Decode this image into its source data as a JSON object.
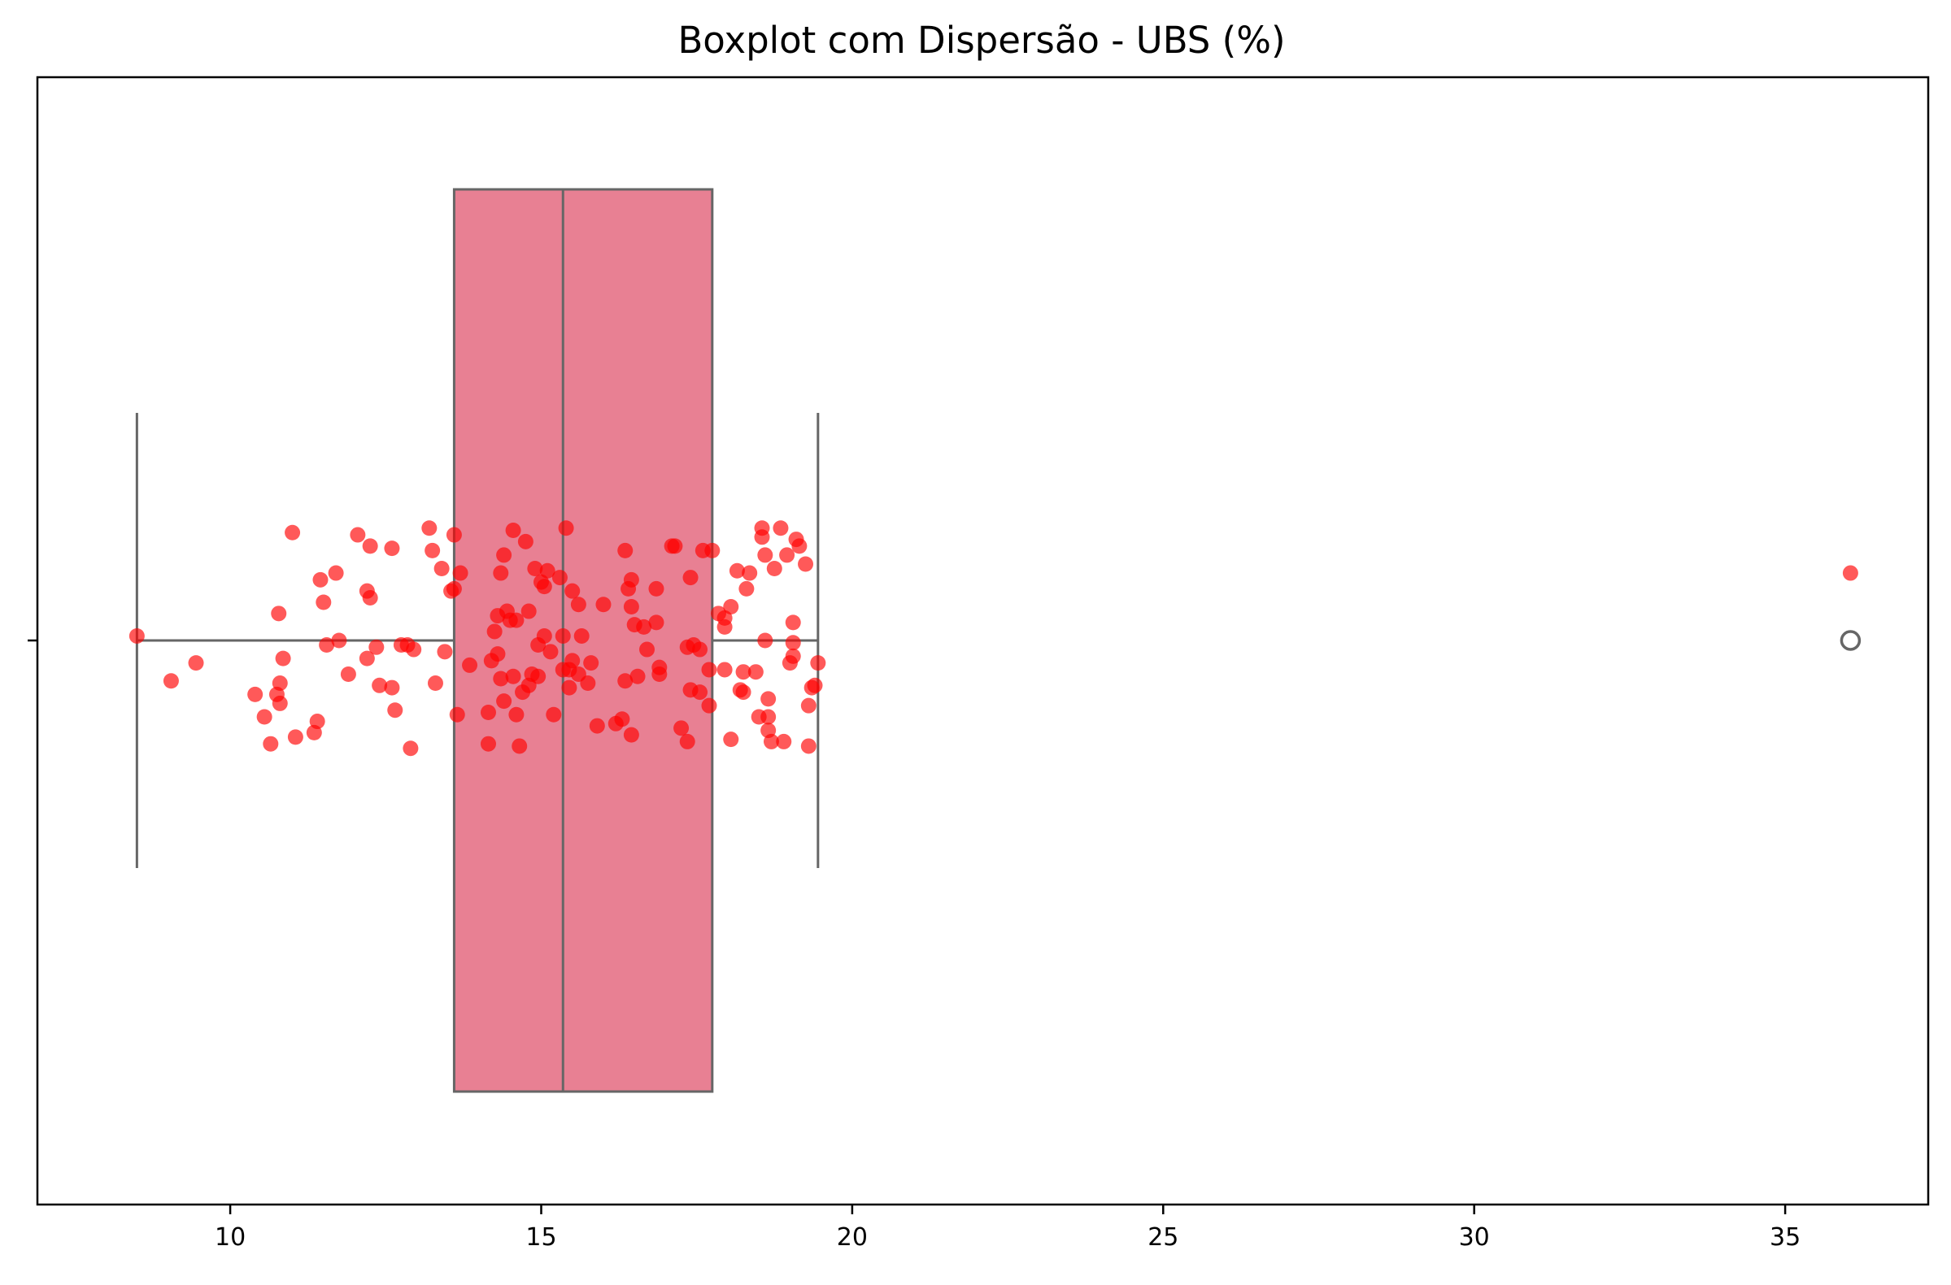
{
  "chart_data": {
    "type": "boxplot",
    "title": "Boxplot com Dispersão - UBS (%)",
    "xlabel": "",
    "ylabel": "",
    "xlim": [
      6.9,
      37.3
    ],
    "xticks": [
      10,
      15,
      20,
      25,
      30,
      35
    ],
    "xtick_labels": [
      "10",
      "15",
      "20",
      "25",
      "30",
      "35"
    ],
    "grid": false,
    "colors": {
      "box_fill": "#e88093",
      "box_edge": "#666666",
      "points": "#ff0000",
      "outlier_edge": "#666666"
    },
    "box": {
      "min_whisker": 8.5,
      "q1": 13.6,
      "median": 15.35,
      "q3": 17.75,
      "max_whisker": 19.45,
      "outliers": [
        36.05
      ]
    },
    "points": [
      {
        "x": 8.5,
        "y": 0.01
      },
      {
        "x": 9.05,
        "y": -0.09
      },
      {
        "x": 9.45,
        "y": -0.05
      },
      {
        "x": 10.4,
        "y": -0.12
      },
      {
        "x": 10.55,
        "y": -0.17
      },
      {
        "x": 10.65,
        "y": -0.23
      },
      {
        "x": 10.75,
        "y": -0.12
      },
      {
        "x": 10.8,
        "y": -0.095
      },
      {
        "x": 10.78,
        "y": 0.06
      },
      {
        "x": 10.8,
        "y": -0.14
      },
      {
        "x": 10.85,
        "y": -0.04
      },
      {
        "x": 11.0,
        "y": 0.24
      },
      {
        "x": 11.05,
        "y": -0.215
      },
      {
        "x": 11.35,
        "y": -0.205
      },
      {
        "x": 11.4,
        "y": -0.18
      },
      {
        "x": 11.45,
        "y": 0.135
      },
      {
        "x": 11.5,
        "y": 0.085
      },
      {
        "x": 11.55,
        "y": -0.01
      },
      {
        "x": 11.7,
        "y": 0.15
      },
      {
        "x": 11.75,
        "y": 0.0
      },
      {
        "x": 11.9,
        "y": -0.075
      },
      {
        "x": 12.05,
        "y": 0.235
      },
      {
        "x": 12.2,
        "y": -0.04
      },
      {
        "x": 12.25,
        "y": 0.21
      },
      {
        "x": 12.2,
        "y": 0.11
      },
      {
        "x": 12.25,
        "y": 0.095
      },
      {
        "x": 12.35,
        "y": -0.015
      },
      {
        "x": 12.4,
        "y": -0.1
      },
      {
        "x": 12.6,
        "y": 0.205
      },
      {
        "x": 12.6,
        "y": -0.105
      },
      {
        "x": 12.65,
        "y": -0.155
      },
      {
        "x": 12.75,
        "y": -0.01
      },
      {
        "x": 12.85,
        "y": -0.01
      },
      {
        "x": 12.9,
        "y": -0.24
      },
      {
        "x": 12.95,
        "y": -0.02
      },
      {
        "x": 13.2,
        "y": 0.25
      },
      {
        "x": 13.25,
        "y": 0.2
      },
      {
        "x": 13.3,
        "y": -0.095
      },
      {
        "x": 13.45,
        "y": -0.025
      },
      {
        "x": 13.4,
        "y": 0.16
      },
      {
        "x": 13.55,
        "y": 0.11
      },
      {
        "x": 13.6,
        "y": 0.115
      },
      {
        "x": 13.6,
        "y": 0.235
      },
      {
        "x": 13.7,
        "y": 0.15
      },
      {
        "x": 13.65,
        "y": -0.165
      },
      {
        "x": 13.85,
        "y": -0.055
      },
      {
        "x": 14.15,
        "y": -0.16
      },
      {
        "x": 14.15,
        "y": -0.23
      },
      {
        "x": 14.2,
        "y": -0.045
      },
      {
        "x": 14.25,
        "y": 0.02
      },
      {
        "x": 14.3,
        "y": -0.03
      },
      {
        "x": 14.3,
        "y": 0.055
      },
      {
        "x": 14.35,
        "y": -0.085
      },
      {
        "x": 14.35,
        "y": 0.15
      },
      {
        "x": 14.4,
        "y": -0.135
      },
      {
        "x": 14.4,
        "y": 0.19
      },
      {
        "x": 14.45,
        "y": 0.065
      },
      {
        "x": 14.5,
        "y": 0.045
      },
      {
        "x": 14.55,
        "y": -0.08
      },
      {
        "x": 14.55,
        "y": 0.245
      },
      {
        "x": 14.6,
        "y": 0.045
      },
      {
        "x": 14.6,
        "y": -0.165
      },
      {
        "x": 14.65,
        "y": -0.235
      },
      {
        "x": 14.7,
        "y": -0.115
      },
      {
        "x": 14.75,
        "y": 0.22
      },
      {
        "x": 14.8,
        "y": -0.1
      },
      {
        "x": 14.8,
        "y": 0.065
      },
      {
        "x": 14.85,
        "y": -0.075
      },
      {
        "x": 14.9,
        "y": 0.16
      },
      {
        "x": 14.95,
        "y": -0.08
      },
      {
        "x": 14.95,
        "y": -0.01
      },
      {
        "x": 15.0,
        "y": 0.13
      },
      {
        "x": 15.05,
        "y": 0.12
      },
      {
        "x": 15.05,
        "y": 0.01
      },
      {
        "x": 15.1,
        "y": 0.155
      },
      {
        "x": 15.15,
        "y": -0.025
      },
      {
        "x": 15.2,
        "y": -0.165
      },
      {
        "x": 15.3,
        "y": 0.14
      },
      {
        "x": 15.35,
        "y": -0.065
      },
      {
        "x": 15.35,
        "y": 0.01
      },
      {
        "x": 15.4,
        "y": 0.25
      },
      {
        "x": 15.45,
        "y": -0.105
      },
      {
        "x": 15.45,
        "y": -0.065
      },
      {
        "x": 15.5,
        "y": -0.045
      },
      {
        "x": 15.5,
        "y": 0.11
      },
      {
        "x": 15.6,
        "y": -0.075
      },
      {
        "x": 15.6,
        "y": 0.08
      },
      {
        "x": 15.65,
        "y": 0.01
      },
      {
        "x": 15.75,
        "y": -0.095
      },
      {
        "x": 15.8,
        "y": -0.05
      },
      {
        "x": 16.0,
        "y": 0.08
      },
      {
        "x": 15.9,
        "y": -0.19
      },
      {
        "x": 16.2,
        "y": -0.185
      },
      {
        "x": 16.3,
        "y": -0.175
      },
      {
        "x": 16.35,
        "y": 0.2
      },
      {
        "x": 16.35,
        "y": -0.09
      },
      {
        "x": 16.4,
        "y": 0.115
      },
      {
        "x": 16.45,
        "y": 0.075
      },
      {
        "x": 16.45,
        "y": 0.135
      },
      {
        "x": 16.45,
        "y": -0.21
      },
      {
        "x": 16.5,
        "y": 0.035
      },
      {
        "x": 16.55,
        "y": -0.08
      },
      {
        "x": 16.65,
        "y": 0.03
      },
      {
        "x": 16.7,
        "y": -0.02
      },
      {
        "x": 16.85,
        "y": 0.04
      },
      {
        "x": 16.85,
        "y": 0.115
      },
      {
        "x": 16.9,
        "y": -0.06
      },
      {
        "x": 16.9,
        "y": -0.075
      },
      {
        "x": 17.1,
        "y": 0.21
      },
      {
        "x": 17.15,
        "y": 0.21
      },
      {
        "x": 17.25,
        "y": -0.195
      },
      {
        "x": 17.35,
        "y": -0.225
      },
      {
        "x": 17.4,
        "y": 0.14
      },
      {
        "x": 17.35,
        "y": -0.015
      },
      {
        "x": 17.4,
        "y": -0.11
      },
      {
        "x": 17.45,
        "y": -0.01
      },
      {
        "x": 17.55,
        "y": -0.115
      },
      {
        "x": 17.55,
        "y": -0.02
      },
      {
        "x": 17.6,
        "y": 0.2
      },
      {
        "x": 17.7,
        "y": -0.065
      },
      {
        "x": 17.7,
        "y": -0.145
      },
      {
        "x": 17.75,
        "y": 0.2
      },
      {
        "x": 17.85,
        "y": 0.06
      },
      {
        "x": 17.95,
        "y": 0.03
      },
      {
        "x": 17.95,
        "y": 0.05
      },
      {
        "x": 17.95,
        "y": -0.065
      },
      {
        "x": 18.05,
        "y": 0.075
      },
      {
        "x": 18.05,
        "y": -0.22
      },
      {
        "x": 18.15,
        "y": 0.155
      },
      {
        "x": 18.2,
        "y": -0.11
      },
      {
        "x": 18.25,
        "y": -0.115
      },
      {
        "x": 18.25,
        "y": -0.07
      },
      {
        "x": 18.3,
        "y": 0.115
      },
      {
        "x": 18.35,
        "y": 0.15
      },
      {
        "x": 18.45,
        "y": -0.07
      },
      {
        "x": 18.5,
        "y": -0.17
      },
      {
        "x": 18.55,
        "y": 0.25
      },
      {
        "x": 18.55,
        "y": 0.23
      },
      {
        "x": 18.6,
        "y": 0.19
      },
      {
        "x": 18.6,
        "y": 0.0
      },
      {
        "x": 18.65,
        "y": -0.13
      },
      {
        "x": 18.65,
        "y": -0.2
      },
      {
        "x": 18.65,
        "y": -0.17
      },
      {
        "x": 18.7,
        "y": -0.225
      },
      {
        "x": 18.75,
        "y": 0.16
      },
      {
        "x": 18.85,
        "y": 0.25
      },
      {
        "x": 18.9,
        "y": -0.225
      },
      {
        "x": 18.95,
        "y": 0.19
      },
      {
        "x": 19.0,
        "y": -0.05
      },
      {
        "x": 19.05,
        "y": -0.005
      },
      {
        "x": 19.05,
        "y": -0.035
      },
      {
        "x": 19.05,
        "y": 0.04
      },
      {
        "x": 19.1,
        "y": 0.225
      },
      {
        "x": 19.15,
        "y": 0.21
      },
      {
        "x": 19.25,
        "y": 0.17
      },
      {
        "x": 19.3,
        "y": -0.145
      },
      {
        "x": 19.3,
        "y": -0.235
      },
      {
        "x": 19.35,
        "y": -0.105
      },
      {
        "x": 19.4,
        "y": -0.1
      },
      {
        "x": 19.45,
        "y": -0.05
      },
      {
        "x": 36.05,
        "y": 0.15
      }
    ]
  }
}
